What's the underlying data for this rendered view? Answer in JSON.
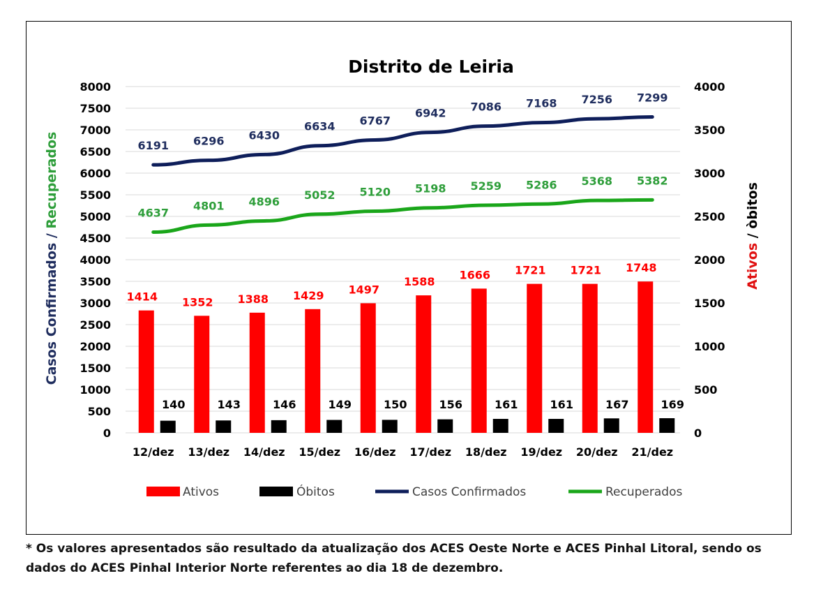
{
  "chart_data": {
    "type": "bar+line",
    "title": "Distrito de Leiria",
    "categories": [
      "12/dez",
      "13/dez",
      "14/dez",
      "15/dez",
      "16/dez",
      "17/dez",
      "18/dez",
      "19/dez",
      "20/dez",
      "21/dez"
    ],
    "left_axis": {
      "label_part1": "Casos Confirmados / ",
      "label_part2": "Recuperados",
      "ylim": [
        0,
        8000
      ],
      "ticks": [
        "0",
        "500",
        "1000",
        "1500",
        "2000",
        "2500",
        "3000",
        "3500",
        "4000",
        "4500",
        "5000",
        "5500",
        "6000",
        "6500",
        "7000",
        "7500",
        "8000"
      ]
    },
    "right_axis": {
      "label_part1": "Ativos",
      "label_part2": " / òbitos",
      "ylim": [
        0,
        4000
      ],
      "ticks": [
        "0",
        "500",
        "1000",
        "1500",
        "2000",
        "2500",
        "3000",
        "3500",
        "4000"
      ]
    },
    "series": [
      {
        "name": "Ativos",
        "kind": "bar",
        "axis": "right",
        "color": "#ff0000",
        "label_color": "#ff0000",
        "values": [
          1414,
          1352,
          1388,
          1429,
          1497,
          1588,
          1666,
          1721,
          1721,
          1748
        ]
      },
      {
        "name": "Óbitos",
        "kind": "bar",
        "axis": "right",
        "color": "#000000",
        "label_color": "#000000",
        "values": [
          140,
          143,
          146,
          149,
          150,
          156,
          161,
          161,
          167,
          169
        ]
      },
      {
        "name": "Casos Confirmados",
        "kind": "line",
        "axis": "left",
        "color": "#0e1e5a",
        "label_color": "#1f2d5e",
        "values": [
          6191,
          6296,
          6430,
          6634,
          6767,
          6942,
          7086,
          7168,
          7256,
          7299
        ]
      },
      {
        "name": "Recuperados",
        "kind": "line",
        "axis": "left",
        "color": "#1aa61a",
        "label_color": "#2e9e3a",
        "values": [
          4637,
          4801,
          4896,
          5052,
          5120,
          5198,
          5259,
          5286,
          5368,
          5382
        ]
      }
    ],
    "legend_position": "bottom",
    "grid": true
  },
  "footnote": {
    "line1": "* Os valores apresentados são resultado da atualização dos ACES Oeste Norte e ACES Pinhal Litoral, sendo os",
    "line2": "dados do ACES Pinhal Interior Norte referentes ao dia 18 de dezembro."
  }
}
